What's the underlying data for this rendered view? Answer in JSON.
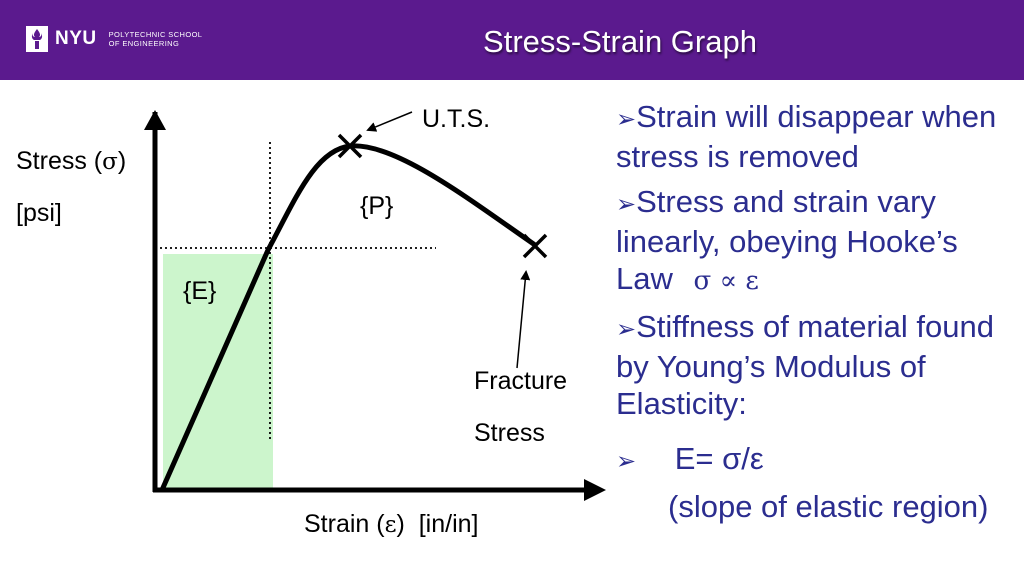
{
  "header": {
    "logo_text": "NYU",
    "logo_sub_line1": "POLYTECHNIC SCHOOL",
    "logo_sub_line2": "OF ENGINEERING",
    "title": "Stress-Strain Graph"
  },
  "diagram": {
    "y_label": "Stress (",
    "y_symbol": "σ",
    "y_close": ")",
    "y_units": "[psi]",
    "x_label": "Strain (",
    "x_symbol": "ε",
    "x_close": ")  [in/in]",
    "uts_label": "U.T.S.",
    "plastic_label": "{P}",
    "elastic_label": "{E}",
    "fracture_label_line1": "Fracture",
    "fracture_label_line2": "Stress",
    "colors": {
      "elastic_region": "#ccf5cc",
      "curve": "#000000"
    }
  },
  "bullets": [
    {
      "marker": "➢",
      "text": "Strain will disappear when stress is removed"
    },
    {
      "marker": "➢",
      "text": "Stress and strain vary linearly, obeying Hooke’s Law",
      "symbol": "σ ∝ ε"
    },
    {
      "marker": "➢",
      "text": "Stiffness of material found by Young’s Modulus of Elasticity:"
    }
  ],
  "formula": {
    "marker": "➢",
    "equation": "E= σ/ε",
    "note": "(slope of elastic region)"
  },
  "colors": {
    "header_bg": "#5b1a8e",
    "text_blue": "#2b2d8f"
  }
}
